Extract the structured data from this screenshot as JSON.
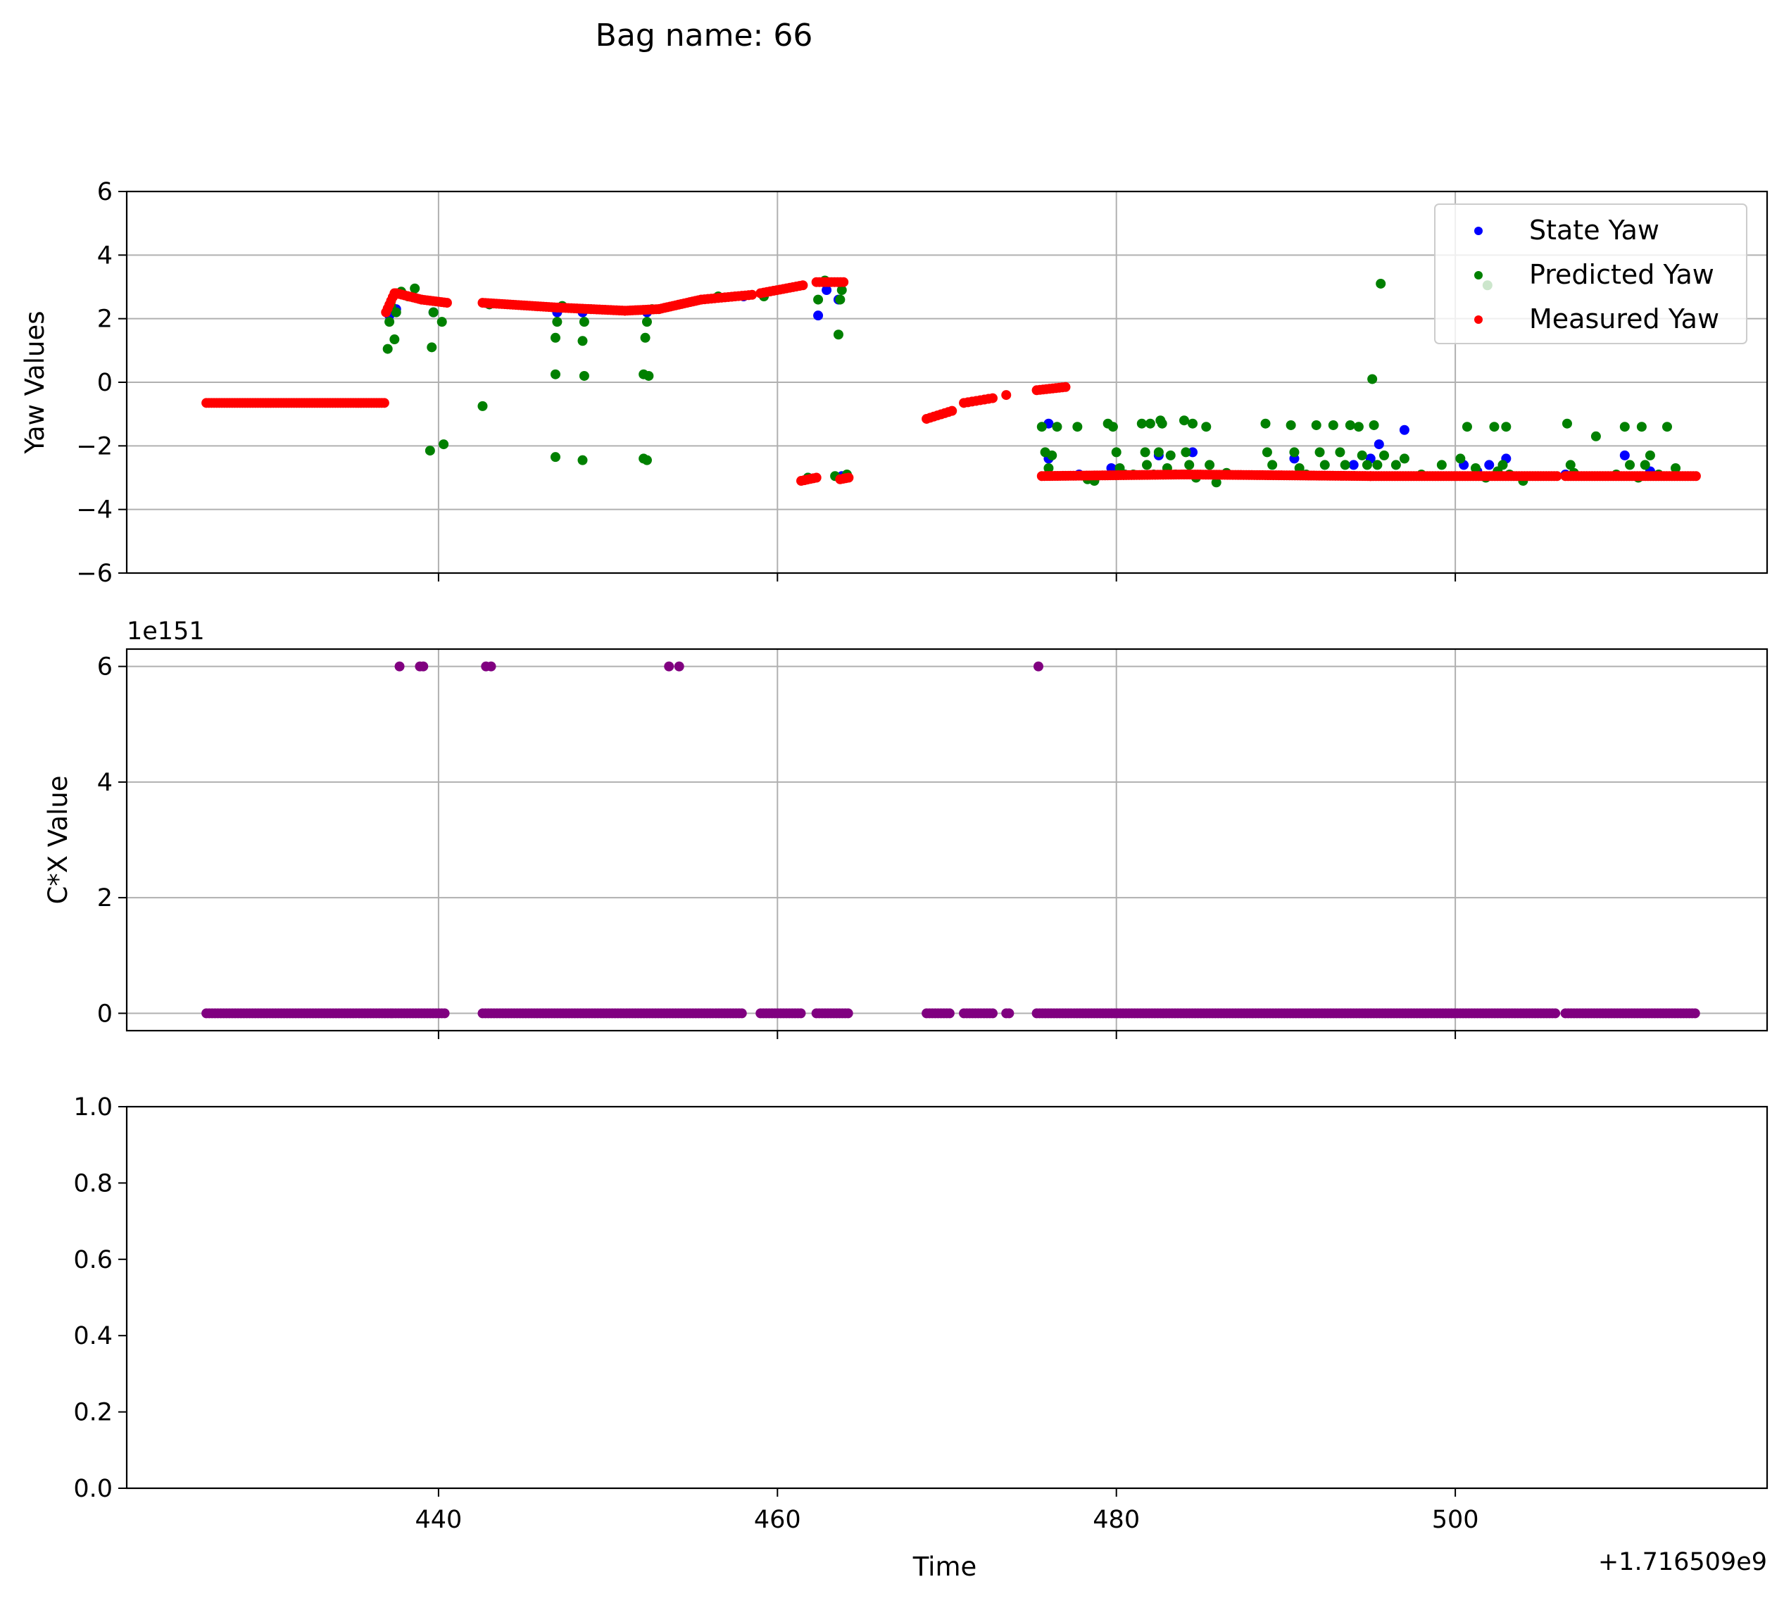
{
  "figure": {
    "suptitle": "Bag name: 66",
    "x_offset_label": "+1.716509e9",
    "xlabel": "Time",
    "x_ticks": [
      440,
      460,
      480,
      500
    ],
    "x_range": [
      421.6,
      518.4
    ]
  },
  "chart_data": [
    {
      "type": "scatter",
      "ylabel": "Yaw Values",
      "ylim": [
        -6,
        6
      ],
      "y_ticks": [
        -6,
        -4,
        -2,
        0,
        2,
        4,
        6
      ],
      "y_tick_labels": [
        "−6",
        "−4",
        "−2",
        "0",
        "2",
        "4",
        "6"
      ],
      "grid": true,
      "legend_position": "top-right",
      "series": [
        {
          "name": "State Yaw",
          "color": "#0000ff",
          "points": [
            [
              437.1,
              2.1
            ],
            [
              437.5,
              2.3
            ],
            [
              439.7,
              2.2
            ],
            [
              443.0,
              2.45
            ],
            [
              447.0,
              2.2
            ],
            [
              448.5,
              2.2
            ],
            [
              452.3,
              2.2
            ],
            [
              458,
              2.7
            ],
            [
              461.8,
              -3.0
            ],
            [
              462.4,
              2.1
            ],
            [
              462.9,
              2.9
            ],
            [
              463.6,
              2.6
            ],
            [
              463.8,
              -2.95
            ],
            [
              476,
              -1.3
            ],
            [
              476,
              -2.4
            ],
            [
              477.8,
              -2.9
            ],
            [
              479.7,
              -2.7
            ],
            [
              480,
              -2.75
            ],
            [
              482.5,
              -2.3
            ],
            [
              484.5,
              -2.2
            ],
            [
              486.5,
              -2.9
            ],
            [
              490.5,
              -2.4
            ],
            [
              494.0,
              -2.6
            ],
            [
              495.0,
              -2.4
            ],
            [
              495.5,
              -1.95
            ],
            [
              497.0,
              -1.5
            ],
            [
              500.5,
              -2.6
            ],
            [
              501.3,
              -2.8
            ],
            [
              502.0,
              -2.6
            ],
            [
              503.0,
              -2.4
            ],
            [
              506.5,
              -2.9
            ],
            [
              510.0,
              -2.3
            ],
            [
              511.5,
              -2.8
            ]
          ]
        },
        {
          "name": "Predicted Yaw",
          "color": "#008000",
          "points": [
            [
              437.0,
              1.05
            ],
            [
              437.1,
              1.9
            ],
            [
              437.2,
              2.4
            ],
            [
              437.4,
              1.35
            ],
            [
              437.5,
              2.2
            ],
            [
              437.8,
              2.85
            ],
            [
              438.2,
              2.7
            ],
            [
              438.6,
              2.95
            ],
            [
              439.5,
              -2.15
            ],
            [
              439.6,
              1.1
            ],
            [
              439.7,
              2.2
            ],
            [
              440.2,
              1.9
            ],
            [
              440.3,
              -1.95
            ],
            [
              442.6,
              -0.75
            ],
            [
              443.0,
              2.45
            ],
            [
              446.9,
              0.25
            ],
            [
              446.9,
              1.4
            ],
            [
              447.0,
              1.9
            ],
            [
              447.3,
              2.4
            ],
            [
              446.9,
              -2.35
            ],
            [
              448.5,
              1.3
            ],
            [
              448.6,
              1.9
            ],
            [
              448.6,
              0.2
            ],
            [
              448.5,
              -2.45
            ],
            [
              449.0,
              2.3
            ],
            [
              452.1,
              0.25
            ],
            [
              452.2,
              1.4
            ],
            [
              452.3,
              1.9
            ],
            [
              452.4,
              0.2
            ],
            [
              452.1,
              -2.4
            ],
            [
              452.3,
              -2.45
            ],
            [
              452.6,
              2.3
            ],
            [
              456.5,
              2.7
            ],
            [
              459.2,
              2.7
            ],
            [
              461.8,
              -3.0
            ],
            [
              462.4,
              2.6
            ],
            [
              462.8,
              3.2
            ],
            [
              463.4,
              -2.95
            ],
            [
              463.6,
              1.5
            ],
            [
              463.7,
              2.6
            ],
            [
              463.8,
              2.9
            ],
            [
              464.1,
              -2.9
            ],
            [
              475.6,
              -1.4
            ],
            [
              475.8,
              -2.2
            ],
            [
              476.0,
              -2.7
            ],
            [
              476.2,
              -2.3
            ],
            [
              476.5,
              -1.4
            ],
            [
              477.7,
              -1.4
            ],
            [
              478.3,
              -3.05
            ],
            [
              478.7,
              -3.1
            ],
            [
              479.5,
              -1.3
            ],
            [
              479.8,
              -1.4
            ],
            [
              480.0,
              -2.2
            ],
            [
              480.2,
              -2.7
            ],
            [
              480.5,
              -2.9
            ],
            [
              481.0,
              -2.9
            ],
            [
              481.5,
              -1.3
            ],
            [
              481.7,
              -2.2
            ],
            [
              481.8,
              -2.6
            ],
            [
              482.0,
              -1.3
            ],
            [
              482.2,
              -2.9
            ],
            [
              482.5,
              -2.2
            ],
            [
              482.6,
              -1.2
            ],
            [
              482.7,
              -1.3
            ],
            [
              483.0,
              -2.7
            ],
            [
              483.2,
              -2.3
            ],
            [
              483.5,
              -2.9
            ],
            [
              484.0,
              -1.2
            ],
            [
              484.1,
              -2.2
            ],
            [
              484.3,
              -2.6
            ],
            [
              484.5,
              -1.3
            ],
            [
              484.7,
              -3.0
            ],
            [
              485.3,
              -1.4
            ],
            [
              485.5,
              -2.6
            ],
            [
              485.9,
              -3.15
            ],
            [
              486.5,
              -2.85
            ],
            [
              488.8,
              -1.3
            ],
            [
              488.9,
              -2.2
            ],
            [
              489.2,
              -2.6
            ],
            [
              490.3,
              -1.35
            ],
            [
              490.5,
              -2.2
            ],
            [
              490.8,
              -2.7
            ],
            [
              491.2,
              -2.9
            ],
            [
              491.8,
              -1.35
            ],
            [
              492.0,
              -2.2
            ],
            [
              492.3,
              -2.6
            ],
            [
              492.8,
              -1.35
            ],
            [
              493.2,
              -2.2
            ],
            [
              493.5,
              -2.6
            ],
            [
              493.8,
              -1.35
            ],
            [
              494.3,
              -1.4
            ],
            [
              494.5,
              -2.3
            ],
            [
              494.8,
              -2.6
            ],
            [
              495.1,
              0.1
            ],
            [
              495.2,
              -1.35
            ],
            [
              495.4,
              -2.6
            ],
            [
              495.6,
              3.1
            ],
            [
              495.8,
              -2.3
            ],
            [
              496.5,
              -2.6
            ],
            [
              497.0,
              -2.4
            ],
            [
              498.0,
              -2.9
            ],
            [
              499.2,
              -2.6
            ],
            [
              500.3,
              -2.4
            ],
            [
              500.7,
              -1.4
            ],
            [
              501.2,
              -2.7
            ],
            [
              501.8,
              -3.0
            ],
            [
              502.3,
              -1.4
            ],
            [
              502.5,
              -2.8
            ],
            [
              502.8,
              -2.6
            ],
            [
              503.0,
              -1.4
            ],
            [
              503.2,
              -2.9
            ],
            [
              504.0,
              -3.1
            ],
            [
              506.6,
              -1.3
            ],
            [
              506.8,
              -2.6
            ],
            [
              507.0,
              -2.85
            ],
            [
              508.3,
              -1.7
            ],
            [
              509.5,
              -2.9
            ],
            [
              510.0,
              -1.4
            ],
            [
              510.3,
              -2.6
            ],
            [
              510.8,
              -3.0
            ],
            [
              511.0,
              -1.4
            ],
            [
              511.2,
              -2.6
            ],
            [
              511.5,
              -2.3
            ],
            [
              512.0,
              -2.9
            ],
            [
              512.5,
              -1.4
            ],
            [
              513.0,
              -2.7
            ],
            [
              501.9,
              3.05
            ]
          ]
        },
        {
          "name": "Measured Yaw",
          "color": "#ff0000",
          "segments": [
            {
              "x0": 426.3,
              "x1": 436.8,
              "y0": -0.65,
              "y1": -0.65,
              "n": 70
            },
            {
              "x0": 436.9,
              "x1": 437.4,
              "y0": 2.2,
              "y1": 2.8,
              "n": 6
            },
            {
              "x0": 437.5,
              "x1": 439.0,
              "y0": 2.8,
              "y1": 2.6,
              "n": 10
            },
            {
              "x0": 439.0,
              "x1": 440.5,
              "y0": 2.6,
              "y1": 2.5,
              "n": 10
            },
            {
              "x0": 442.6,
              "x1": 447.0,
              "y0": 2.5,
              "y1": 2.35,
              "n": 28
            },
            {
              "x0": 447.0,
              "x1": 451.0,
              "y0": 2.35,
              "y1": 2.25,
              "n": 25
            },
            {
              "x0": 451.0,
              "x1": 453.0,
              "y0": 2.25,
              "y1": 2.3,
              "n": 14
            },
            {
              "x0": 453.0,
              "x1": 455.5,
              "y0": 2.3,
              "y1": 2.6,
              "n": 16
            },
            {
              "x0": 455.5,
              "x1": 458.5,
              "y0": 2.6,
              "y1": 2.75,
              "n": 16
            },
            {
              "x0": 459.0,
              "x1": 461.5,
              "y0": 2.8,
              "y1": 3.05,
              "n": 14
            },
            {
              "x0": 461.4,
              "x1": 462.3,
              "y0": -3.1,
              "y1": -3.0,
              "n": 6
            },
            {
              "x0": 462.3,
              "x1": 463.9,
              "y0": 3.15,
              "y1": 3.15,
              "n": 10
            },
            {
              "x0": 463.7,
              "x1": 464.2,
              "y0": -3.05,
              "y1": -3.0,
              "n": 4
            },
            {
              "x0": 468.8,
              "x1": 470.3,
              "y0": -1.15,
              "y1": -0.9,
              "n": 8
            },
            {
              "x0": 471.0,
              "x1": 472.7,
              "y0": -0.65,
              "y1": -0.5,
              "n": 8
            },
            {
              "x0": 473.5,
              "x1": 473.6,
              "y0": -0.4,
              "y1": -0.4,
              "n": 1
            },
            {
              "x0": 475.3,
              "x1": 477.0,
              "y0": -0.25,
              "y1": -0.15,
              "n": 10
            },
            {
              "x0": 475.6,
              "x1": 484.0,
              "y0": -2.95,
              "y1": -2.9,
              "n": 55
            },
            {
              "x0": 484.0,
              "x1": 495.0,
              "y0": -2.9,
              "y1": -2.95,
              "n": 70
            },
            {
              "x0": 495.0,
              "x1": 506.0,
              "y0": -2.95,
              "y1": -2.95,
              "n": 70
            },
            {
              "x0": 506.5,
              "x1": 514.2,
              "y0": -2.95,
              "y1": -2.95,
              "n": 50
            }
          ]
        }
      ]
    },
    {
      "type": "scatter",
      "ylabel": "C*X Value",
      "y_offset_label": "1e151",
      "ylim": [
        -0.3,
        6.3
      ],
      "y_ticks": [
        0,
        2,
        4,
        6
      ],
      "y_tick_labels": [
        "0",
        "2",
        "4",
        "6"
      ],
      "grid": true,
      "series": [
        {
          "name": "",
          "color": "#800080",
          "points": [
            [
              437.7,
              6.0
            ],
            [
              438.9,
              6.0
            ],
            [
              439.1,
              6.0
            ],
            [
              442.8,
              6.0
            ],
            [
              443.1,
              6.0
            ],
            [
              453.6,
              6.0
            ],
            [
              454.2,
              6.0
            ],
            [
              475.4,
              6.0
            ]
          ],
          "zero_segments": [
            [
              426.3,
              437.2
            ],
            [
              437.3,
              440.5
            ],
            [
              442.6,
              458.0
            ],
            [
              459.0,
              461.5
            ],
            [
              462.3,
              464.2
            ],
            [
              468.8,
              470.3
            ],
            [
              471.0,
              472.7
            ],
            [
              473.5,
              473.7
            ],
            [
              475.3,
              506.0
            ],
            [
              506.5,
              514.2
            ]
          ]
        }
      ]
    },
    {
      "type": "scatter",
      "ylim": [
        0,
        1
      ],
      "y_ticks": [
        0,
        0.2,
        0.4,
        0.6,
        0.8,
        1.0
      ],
      "y_tick_labels": [
        "0.0",
        "0.2",
        "0.4",
        "0.6",
        "0.8",
        "1.0"
      ],
      "grid": false,
      "series": []
    }
  ]
}
